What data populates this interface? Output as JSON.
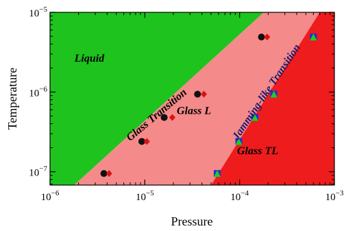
{
  "chart_data": {
    "type": "scatter",
    "title": "",
    "xlabel": "Pressure",
    "ylabel": "Temperature",
    "x_scale": "log",
    "y_scale": "log",
    "xlim": [
      1e-06,
      0.001
    ],
    "ylim": [
      6.8e-08,
      1e-05
    ],
    "x_ticks": [
      {
        "value": 1e-06,
        "base": "10",
        "exp": "−6"
      },
      {
        "value": 1e-05,
        "base": "10",
        "exp": "−5"
      },
      {
        "value": 0.0001,
        "base": "10",
        "exp": "−4"
      },
      {
        "value": 0.001,
        "base": "10",
        "exp": "−3"
      }
    ],
    "y_ticks": [
      {
        "value": 1e-07,
        "base": "10",
        "exp": "−7"
      },
      {
        "value": 1e-06,
        "base": "10",
        "exp": "−6"
      },
      {
        "value": 1e-05,
        "base": "10",
        "exp": "−5"
      }
    ],
    "regions": [
      {
        "name": "Liquid",
        "color": "#1ec31e",
        "label_at": [
          2.6e-06,
          2.4e-06
        ]
      },
      {
        "name": "Glass L",
        "color": "#f48a8a",
        "label_at": [
          3.3e-05,
          5.3e-07
        ]
      },
      {
        "name": "Glass TL",
        "color": "#ee1c1c",
        "label_at": [
          0.000155,
          1.65e-07
        ]
      }
    ],
    "boundaries": [
      {
        "name": "Glass Transition",
        "from": [
          1.8e-06,
          6.8e-08
        ],
        "to": [
          0.00018,
          1e-05
        ]
      },
      {
        "name": "Jamming-like Transition",
        "from": [
          5e-05,
          6.8e-08
        ],
        "to": [
          0.0007,
          1e-05
        ]
      }
    ],
    "boundary_labels": [
      {
        "text": "Glass Transition",
        "at": [
          1.4e-05,
          4.8e-07
        ],
        "angle_deg": -40
      },
      {
        "text": "Jamming-like Transition",
        "at": [
          0.000205,
          9.5e-07
        ],
        "angle_deg": -56
      }
    ],
    "series": [
      {
        "marker": "black-circle",
        "color": "#111111",
        "x": [
          3.7e-06,
          9.3e-06,
          1.6e-05,
          3.6e-05,
          0.00017
        ],
        "y": [
          9.5e-08,
          2.4e-07,
          4.8e-07,
          9.4e-07,
          4.9e-06
        ]
      },
      {
        "marker": "red-diamond",
        "color": "#dd1111",
        "x": [
          4.2e-06,
          1.05e-05,
          1.95e-05,
          4.2e-05,
          0.000195
        ],
        "y": [
          9.5e-08,
          2.4e-07,
          4.8e-07,
          9.4e-07,
          4.9e-06
        ]
      },
      {
        "marker": "blue-square",
        "color": "#2a2ad8",
        "x": [
          5.8e-05,
          9.8e-05,
          0.000145,
          0.00023,
          0.0006
        ],
        "y": [
          9.5e-08,
          2.4e-07,
          4.8e-07,
          9.4e-07,
          4.9e-06
        ]
      },
      {
        "marker": "green-triangle",
        "color": "#22cc22",
        "x": [
          5.8e-05,
          9.8e-05,
          0.000145,
          0.00023,
          0.0006
        ],
        "y": [
          9.5e-08,
          2.4e-07,
          4.8e-07,
          9.4e-07,
          4.9e-06
        ]
      }
    ],
    "grid": false,
    "legend": "none"
  }
}
